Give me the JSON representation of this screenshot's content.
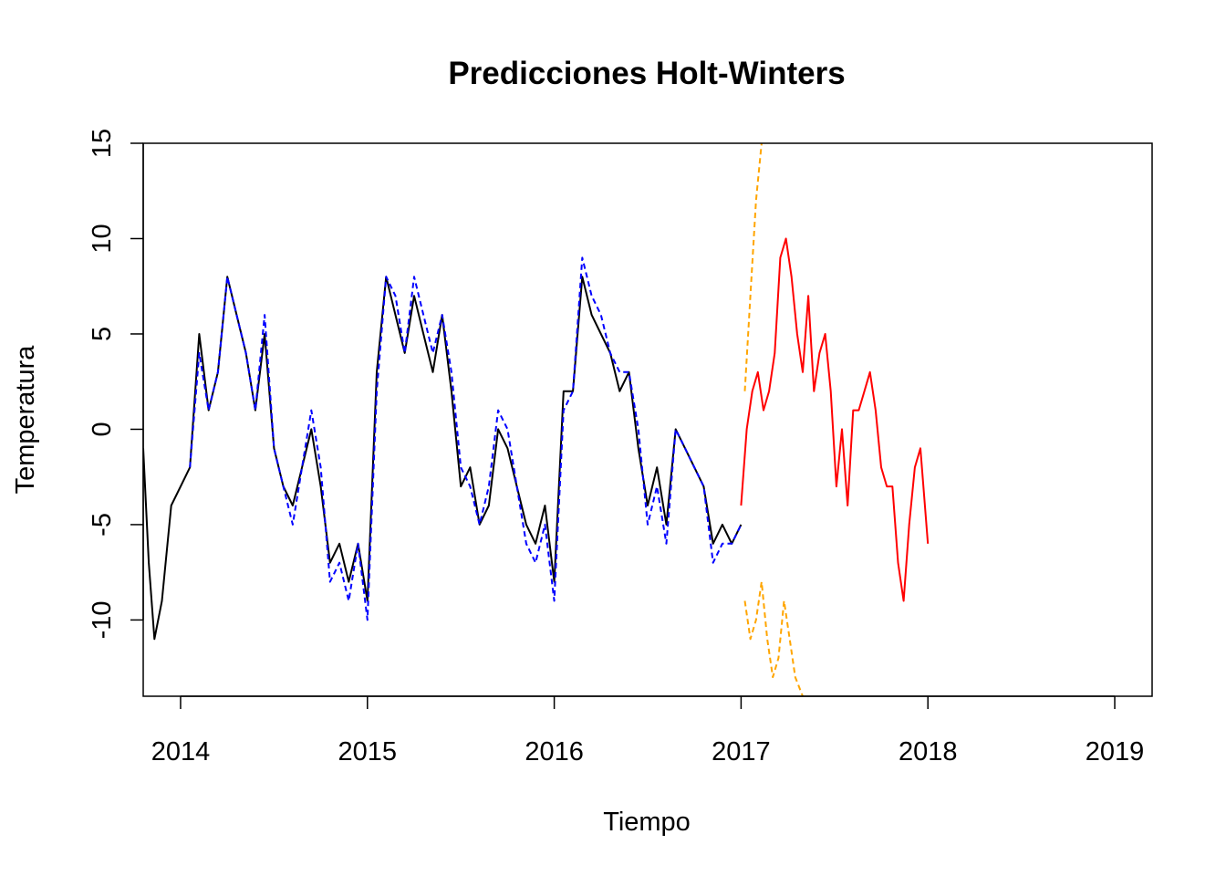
{
  "chart_data": {
    "type": "line",
    "title": "Predicciones Holt-Winters",
    "xlabel": "Tiempo",
    "ylabel": "Temperatura",
    "xlim": [
      2013.8,
      2019.2
    ],
    "ylim": [
      -14,
      15
    ],
    "x_ticks": [
      2014,
      2015,
      2016,
      2017,
      2018,
      2019
    ],
    "y_ticks": [
      -10,
      -5,
      0,
      5,
      10,
      15
    ],
    "grid": false,
    "legend": "none",
    "series": [
      {
        "color": "#000000",
        "style": "solid",
        "x": [
          2013.8,
          2013.83,
          2013.86,
          2013.9,
          2013.95,
          2014.0,
          2014.05,
          2014.1,
          2014.15,
          2014.2,
          2014.25,
          2014.3,
          2014.35,
          2014.4,
          2014.45,
          2014.5,
          2014.55,
          2014.6,
          2014.65,
          2014.7,
          2014.75,
          2014.8,
          2014.85,
          2014.9,
          2014.95,
          2015.0,
          2015.05,
          2015.1,
          2015.15,
          2015.2,
          2015.25,
          2015.3,
          2015.35,
          2015.4,
          2015.45,
          2015.5,
          2015.55,
          2015.6,
          2015.65,
          2015.7,
          2015.75,
          2015.8,
          2015.85,
          2015.9,
          2015.95,
          2016.0,
          2016.05,
          2016.1,
          2016.15,
          2016.2,
          2016.25,
          2016.3,
          2016.35,
          2016.4,
          2016.45,
          2016.5,
          2016.55,
          2016.6,
          2016.65,
          2016.7,
          2016.75,
          2016.8,
          2016.85,
          2016.9,
          2016.95,
          2017.0
        ],
        "y": [
          -1,
          -7,
          -11,
          -9,
          -4,
          -3,
          -2,
          5,
          1,
          3,
          8,
          6,
          4,
          1,
          5,
          -1,
          -3,
          -4,
          -2,
          0,
          -3,
          -7,
          -6,
          -8,
          -6,
          -9,
          3,
          8,
          6,
          4,
          7,
          5,
          3,
          6,
          2,
          -3,
          -2,
          -5,
          -4,
          0,
          -1,
          -3,
          -5,
          -6,
          -4,
          -8,
          2,
          2,
          8,
          6,
          5,
          4,
          2,
          3,
          -1,
          -4,
          -2,
          -5,
          0,
          -1,
          -2,
          -3,
          -6,
          -5,
          -6,
          -5
        ]
      },
      {
        "color": "#0000ff",
        "style": "dashed",
        "x": [
          2014.05,
          2014.1,
          2014.15,
          2014.2,
          2014.25,
          2014.3,
          2014.35,
          2014.4,
          2014.45,
          2014.5,
          2014.55,
          2014.6,
          2014.65,
          2014.7,
          2014.75,
          2014.8,
          2014.85,
          2014.9,
          2014.95,
          2015.0,
          2015.05,
          2015.1,
          2015.15,
          2015.2,
          2015.25,
          2015.3,
          2015.35,
          2015.4,
          2015.45,
          2015.5,
          2015.55,
          2015.6,
          2015.65,
          2015.7,
          2015.75,
          2015.8,
          2015.85,
          2015.9,
          2015.95,
          2016.0,
          2016.05,
          2016.1,
          2016.15,
          2016.2,
          2016.25,
          2016.3,
          2016.35,
          2016.4,
          2016.45,
          2016.5,
          2016.55,
          2016.6,
          2016.65,
          2016.7,
          2016.75,
          2016.8,
          2016.85,
          2016.9,
          2016.95,
          2017.0
        ],
        "y": [
          -2,
          4,
          1,
          3,
          8,
          6,
          4,
          1,
          6,
          -1,
          -3,
          -5,
          -2,
          1,
          -2,
          -8,
          -7,
          -9,
          -6,
          -10,
          2,
          8,
          7,
          4,
          8,
          6,
          4,
          6,
          3,
          -2,
          -3,
          -5,
          -3,
          1,
          0,
          -3,
          -6,
          -7,
          -5,
          -9,
          1,
          2,
          9,
          7,
          6,
          4,
          3,
          3,
          0,
          -5,
          -3,
          -6,
          0,
          -1,
          -2,
          -3,
          -7,
          -6,
          -6,
          -5
        ]
      },
      {
        "color": "#ff0000",
        "style": "solid",
        "x": [
          2017.0,
          2017.03,
          2017.06,
          2017.09,
          2017.12,
          2017.15,
          2017.18,
          2017.21,
          2017.24,
          2017.27,
          2017.3,
          2017.33,
          2017.36,
          2017.39,
          2017.42,
          2017.45,
          2017.48,
          2017.51,
          2017.54,
          2017.57,
          2017.6,
          2017.63,
          2017.66,
          2017.69,
          2017.72,
          2017.75,
          2017.78,
          2017.81,
          2017.84,
          2017.87,
          2017.9,
          2017.93,
          2017.96,
          2018.0
        ],
        "y": [
          -4,
          0,
          2,
          3,
          1,
          2,
          4,
          9,
          10,
          8,
          5,
          3,
          7,
          2,
          4,
          5,
          2,
          -3,
          0,
          -4,
          1,
          1,
          2,
          3,
          1,
          -2,
          -3,
          -3,
          -7,
          -9,
          -5,
          -2,
          -1,
          -6
        ]
      },
      {
        "color": "#ffa500",
        "style": "dashed",
        "x": [
          2017.02,
          2017.05,
          2017.08,
          2017.11
        ],
        "y": [
          2,
          7,
          12,
          15
        ]
      },
      {
        "color": "#ffa500",
        "style": "dashed",
        "x": [
          2017.02,
          2017.05,
          2017.08,
          2017.11,
          2017.14,
          2017.17,
          2017.2,
          2017.23,
          2017.26,
          2017.29,
          2017.33
        ],
        "y": [
          -9,
          -11,
          -10,
          -8,
          -11,
          -13,
          -12,
          -9,
          -11,
          -13,
          -14
        ]
      }
    ]
  }
}
